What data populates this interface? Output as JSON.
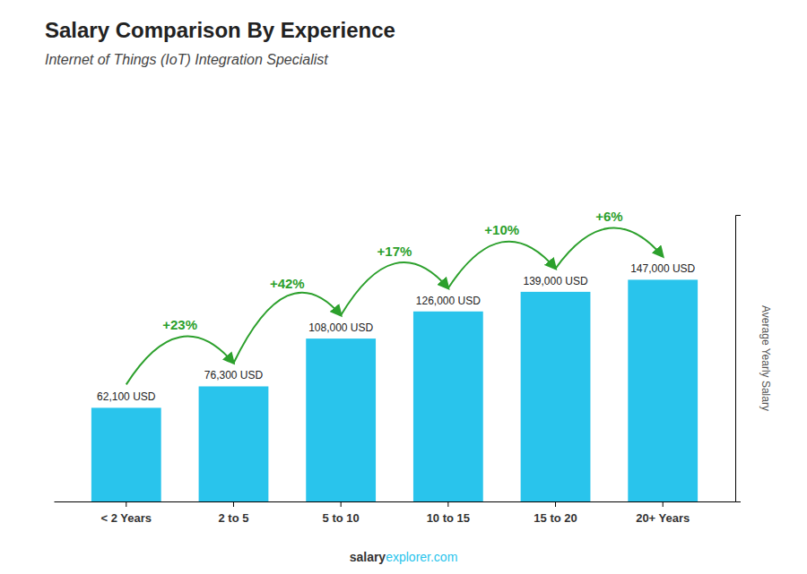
{
  "chart_data": {
    "type": "bar",
    "title": "Salary Comparison By Experience",
    "subtitle": "Internet of Things (IoT) Integration Specialist",
    "categories": [
      "< 2 Years",
      "2 to 5",
      "5 to 10",
      "10 to 15",
      "15 to 20",
      "20+ Years"
    ],
    "values": [
      62100,
      76300,
      108000,
      126000,
      139000,
      147000
    ],
    "value_labels": [
      "62,100 USD",
      "76,300 USD",
      "108,000 USD",
      "126,000 USD",
      "139,000 USD",
      "147,000 USD"
    ],
    "color": "#29c4ec",
    "ylabel": "Average Yearly Salary",
    "ylim": [
      0,
      190000
    ],
    "data_labels": true,
    "tick_labels": "x",
    "grid": false,
    "annotations": [
      "+23%",
      "+42%",
      "+17%",
      "+10%",
      "+6%"
    ],
    "footer": [
      "salary",
      "explorer.com"
    ]
  }
}
